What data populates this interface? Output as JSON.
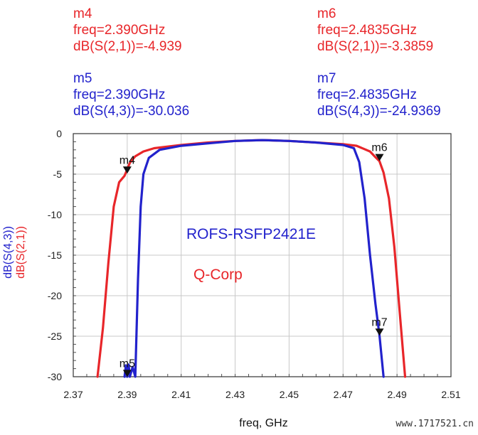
{
  "markers": {
    "m4": {
      "name": "m4",
      "freq_line": "freq=2.390GHz",
      "value_line": "dB(S(2,1))=-4.939",
      "color": "#e8262a"
    },
    "m6": {
      "name": "m6",
      "freq_line": "freq=2.4835GHz",
      "value_line": "dB(S(2,1))=-3.3859",
      "color": "#e8262a"
    },
    "m5": {
      "name": "m5",
      "freq_line": "freq=2.390GHz",
      "value_line": "dB(S(4,3))=-30.036",
      "color": "#2222cc"
    },
    "m7": {
      "name": "m7",
      "freq_line": "freq=2.4835GHz",
      "value_line": "dB(S(4,3))=-24.9369",
      "color": "#2222cc"
    }
  },
  "annotations": {
    "part_number": "ROFS-RSFP2421E",
    "company": "Q-Corp",
    "part_number_color": "#2222cc",
    "company_color": "#e8262a"
  },
  "watermark": "www.1717521.cn",
  "chart_data": {
    "type": "line",
    "xlabel": "freq, GHz",
    "ylabel_series": [
      "dB(S(4,3))",
      "dB(S(2,1))"
    ],
    "xlim": [
      2.37,
      2.51
    ],
    "ylim": [
      -30,
      0
    ],
    "xticks": [
      "2.37",
      "2.39",
      "2.41",
      "2.43",
      "2.45",
      "2.47",
      "2.49",
      "2.51"
    ],
    "yticks": [
      "0",
      "-5",
      "-10",
      "-15",
      "-20",
      "-25",
      "-30"
    ],
    "grid": true,
    "series": [
      {
        "name": "dB(S(2,1))",
        "color": "#e8262a",
        "x": [
          2.379,
          2.381,
          2.383,
          2.385,
          2.387,
          2.389,
          2.391,
          2.393,
          2.396,
          2.4,
          2.41,
          2.42,
          2.43,
          2.44,
          2.45,
          2.46,
          2.47,
          2.475,
          2.48,
          2.482,
          2.4835,
          2.485,
          2.487,
          2.489,
          2.491,
          2.493
        ],
        "y": [
          -30,
          -24,
          -16,
          -9,
          -6,
          -5.2,
          -3.6,
          -2.8,
          -2.2,
          -1.8,
          -1.4,
          -1.1,
          -0.9,
          -0.8,
          -0.9,
          -1.1,
          -1.3,
          -1.5,
          -2.2,
          -2.9,
          -3.4,
          -4.8,
          -8,
          -14,
          -22,
          -30
        ]
      },
      {
        "name": "dB(S(4,3))",
        "color": "#2222cc",
        "x": [
          2.389,
          2.3895,
          2.39,
          2.3905,
          2.391,
          2.392,
          2.393,
          2.394,
          2.395,
          2.396,
          2.398,
          2.402,
          2.41,
          2.42,
          2.43,
          2.44,
          2.45,
          2.46,
          2.47,
          2.474,
          2.476,
          2.478,
          2.48,
          2.482,
          2.4835,
          2.485
        ],
        "y": [
          -30,
          -28.6,
          -30,
          -28.5,
          -30,
          -28.8,
          -30,
          -18,
          -9,
          -5,
          -3,
          -2,
          -1.5,
          -1.2,
          -0.9,
          -0.8,
          -0.9,
          -1.1,
          -1.4,
          -1.8,
          -3.5,
          -8,
          -15,
          -21,
          -24.9,
          -30
        ]
      }
    ],
    "marker_points": [
      {
        "name": "m4",
        "x": 2.39,
        "y": -4.939
      },
      {
        "name": "m5",
        "x": 2.39,
        "y": -30.036
      },
      {
        "name": "m6",
        "x": 2.4835,
        "y": -3.3859
      },
      {
        "name": "m7",
        "x": 2.4835,
        "y": -24.9369
      }
    ]
  }
}
